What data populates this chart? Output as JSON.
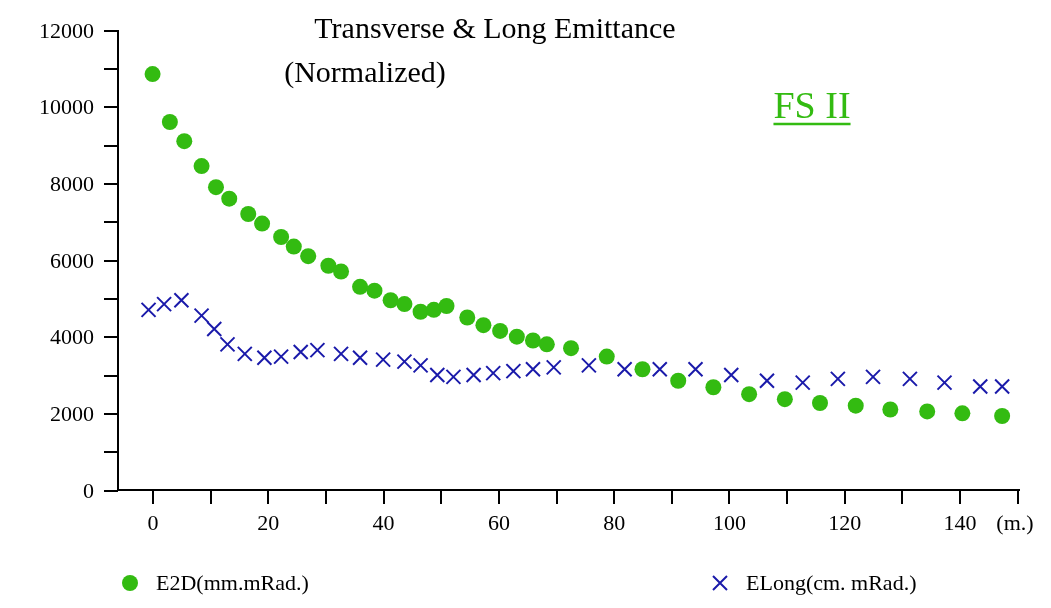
{
  "chart_data": {
    "type": "scatter",
    "title": "Transverse & Long  Emittance",
    "subtitle": "(Normalized)",
    "xlabel": "(m.)",
    "annotations": [
      "FS II"
    ],
    "xlim": [
      -6,
      150.5
    ],
    "ylim": [
      0,
      12000
    ],
    "xticks": [
      0,
      {
        "value": 10,
        "label": null
      },
      20,
      {
        "value": 30,
        "label": null
      },
      40,
      {
        "value": 50,
        "label": null
      },
      60,
      {
        "value": 70,
        "label": null
      },
      80,
      {
        "value": 90,
        "label": null
      },
      100,
      {
        "value": 110,
        "label": null
      },
      120,
      {
        "value": 130,
        "label": null
      },
      140,
      {
        "value": 150,
        "label": null
      }
    ],
    "yticks": [
      0,
      {
        "value": 1000,
        "label": null
      },
      2000,
      {
        "value": 3000,
        "label": null
      },
      4000,
      {
        "value": 5000,
        "label": null
      },
      6000,
      {
        "value": 7000,
        "label": null
      },
      8000,
      {
        "value": 9000,
        "label": null
      },
      10000,
      {
        "value": 11000,
        "label": null
      },
      12000
    ],
    "grid": false,
    "legend": "bottom",
    "series": [
      {
        "name": "E2D(mm.mRad.)",
        "color": "#33bb11",
        "marker": "circle",
        "x": [
          0,
          3,
          5.5,
          8.5,
          11,
          13.3,
          16.6,
          19,
          22.3,
          24.5,
          27,
          30.5,
          32.7,
          36,
          38.5,
          41.3,
          43.7,
          46.5,
          48.8,
          51,
          54.6,
          57.4,
          60.3,
          63.2,
          66,
          68.4,
          72.6,
          78.8,
          85,
          91.2,
          97.3,
          103.5,
          109.7,
          115.8,
          122,
          128,
          134.4,
          140.5,
          147.4
        ],
        "values": [
          10850,
          9600,
          9100,
          8450,
          7900,
          7600,
          7200,
          6950,
          6600,
          6350,
          6100,
          5850,
          5700,
          5300,
          5200,
          4950,
          4850,
          4650,
          4700,
          4800,
          4500,
          4300,
          4150,
          4000,
          3900,
          3800,
          3700,
          3480,
          3150,
          2850,
          2680,
          2500,
          2370,
          2270,
          2200,
          2100,
          2050,
          2000,
          1930
        ]
      },
      {
        "name": "ELong(cm. mRad.)",
        "color": "#1a1aaa",
        "marker": "cross",
        "x": [
          -0.7,
          2,
          5,
          8.5,
          10.7,
          13,
          16,
          19.4,
          22.3,
          25.7,
          28.6,
          32.7,
          36,
          40,
          43.7,
          46.5,
          49.4,
          52.2,
          55.7,
          59.1,
          62.6,
          66,
          69.6,
          75.7,
          81.9,
          88,
          94.2,
          100.4,
          106.6,
          112.8,
          118.9,
          125,
          131.4,
          137.4,
          143.6,
          147.4
        ],
        "values": [
          4700,
          4850,
          4950,
          4550,
          4200,
          3800,
          3550,
          3450,
          3480,
          3600,
          3650,
          3550,
          3450,
          3400,
          3350,
          3250,
          3000,
          2950,
          3000,
          3050,
          3100,
          3150,
          3200,
          3250,
          3150,
          3150,
          3150,
          3000,
          2850,
          2800,
          2900,
          2950,
          2900,
          2800,
          2700,
          2700
        ]
      }
    ]
  }
}
